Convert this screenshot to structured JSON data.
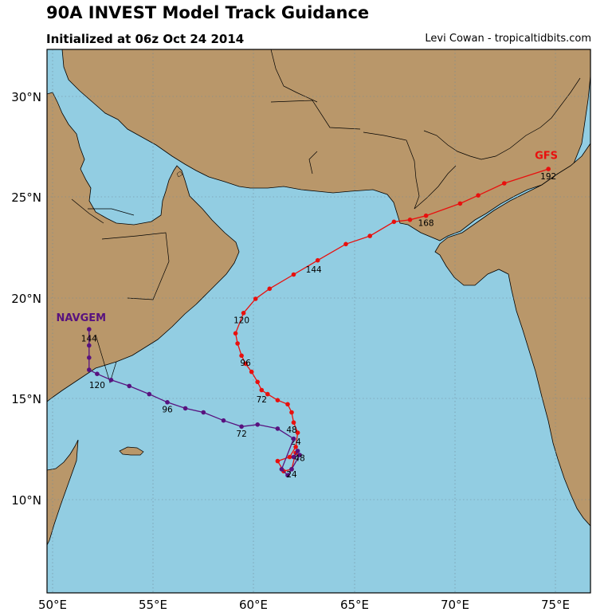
{
  "title": "90A INVEST Model Track Guidance",
  "subtitle": "Initialized at 06z Oct 24 2014",
  "credit": "Levi Cowan - tropicaltidbits.com",
  "colors": {
    "ocean": "#92CDE2",
    "land": "#B9976A",
    "gfs": "#E8100E",
    "navgem": "#58127F"
  },
  "lat_labels": [
    "30°N",
    "25°N",
    "20°N",
    "15°N",
    "10°N"
  ],
  "lon_labels": [
    "50°E",
    "55°E",
    "60°E",
    "65°E",
    "70°E",
    "75°E"
  ],
  "map_extent": {
    "lon": [
      49.7,
      76.8
    ],
    "lat": [
      5.5,
      32.3
    ]
  },
  "grid": true,
  "models": [
    {
      "name": "GFS",
      "color": "#E8100E",
      "track": [
        [
          62.1,
          12.4
        ],
        [
          61.9,
          11.6
        ],
        [
          61.5,
          11.5
        ],
        [
          61.2,
          12.0
        ],
        [
          61.8,
          12.2
        ],
        [
          62.1,
          12.7
        ],
        [
          62.2,
          13.4
        ],
        [
          62.0,
          13.9
        ],
        [
          61.9,
          14.4
        ],
        [
          61.7,
          14.8
        ],
        [
          61.2,
          15.0
        ],
        [
          60.7,
          15.3
        ],
        [
          60.4,
          15.5
        ],
        [
          60.2,
          15.9
        ],
        [
          59.9,
          16.4
        ],
        [
          59.6,
          16.8
        ],
        [
          59.4,
          17.2
        ],
        [
          59.2,
          17.8
        ],
        [
          59.1,
          18.3
        ],
        [
          59.5,
          19.3
        ],
        [
          60.1,
          20.0
        ],
        [
          60.8,
          20.5
        ],
        [
          62.0,
          21.2
        ],
        [
          63.2,
          21.9
        ],
        [
          64.6,
          22.7
        ],
        [
          65.8,
          23.1
        ],
        [
          67.0,
          23.8
        ],
        [
          67.8,
          23.9
        ],
        [
          68.6,
          24.1
        ],
        [
          70.3,
          24.7
        ],
        [
          71.2,
          25.1
        ],
        [
          72.5,
          25.7
        ],
        [
          74.7,
          26.4
        ]
      ],
      "labels": [
        {
          "text": "24",
          "lon": 62.1,
          "lat": 12.8
        },
        {
          "text": "48",
          "lon": 61.9,
          "lat": 13.4
        },
        {
          "text": "72",
          "lon": 60.4,
          "lat": 14.9
        },
        {
          "text": "96",
          "lon": 59.6,
          "lat": 16.7
        },
        {
          "text": "120",
          "lon": 59.4,
          "lat": 18.8
        },
        {
          "text": "144",
          "lon": 63.0,
          "lat": 21.3
        },
        {
          "text": "168",
          "lon": 68.6,
          "lat": 23.6
        },
        {
          "text": "192",
          "lon": 74.7,
          "lat": 25.9
        }
      ],
      "name_pos": {
        "lon": 74.6,
        "lat": 26.9
      }
    },
    {
      "name": "NAVGEM",
      "color": "#58127F",
      "track": [
        [
          62.2,
          12.5
        ],
        [
          62.0,
          12.2
        ],
        [
          62.3,
          12.3
        ],
        [
          61.9,
          11.6
        ],
        [
          61.7,
          11.3
        ],
        [
          61.4,
          11.6
        ],
        [
          62.0,
          13.1
        ],
        [
          61.2,
          13.6
        ],
        [
          60.2,
          13.8
        ],
        [
          59.4,
          13.7
        ],
        [
          58.5,
          14.0
        ],
        [
          57.5,
          14.4
        ],
        [
          56.6,
          14.6
        ],
        [
          55.7,
          14.9
        ],
        [
          54.8,
          15.3
        ],
        [
          53.8,
          15.7
        ],
        [
          52.9,
          16.0
        ],
        [
          52.2,
          16.3
        ],
        [
          51.8,
          16.5
        ],
        [
          51.8,
          17.1
        ],
        [
          51.8,
          17.7
        ],
        [
          51.8,
          18.5
        ]
      ],
      "labels": [
        {
          "text": "24",
          "lon": 61.9,
          "lat": 11.2
        },
        {
          "text": "48",
          "lon": 62.3,
          "lat": 12.0
        },
        {
          "text": "72",
          "lon": 59.4,
          "lat": 13.2
        },
        {
          "text": "96",
          "lon": 55.7,
          "lat": 14.4
        },
        {
          "text": "120",
          "lon": 52.2,
          "lat": 15.6
        },
        {
          "text": "144",
          "lon": 51.8,
          "lat": 17.9
        }
      ],
      "name_pos": {
        "lon": 51.4,
        "lat": 18.9
      }
    }
  ]
}
